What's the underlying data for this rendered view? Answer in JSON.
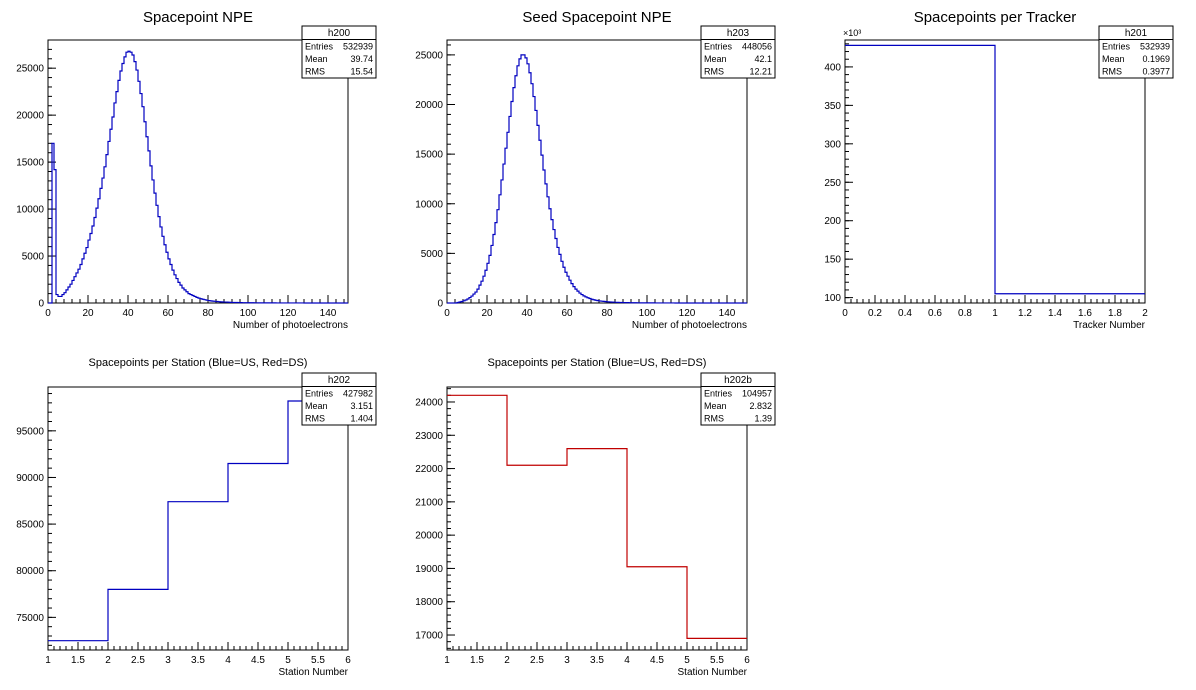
{
  "chart_data": [
    {
      "type": "histogram",
      "title": "Spacepoint NPE",
      "xlabel": "Number of photoelectrons",
      "ylabel": "",
      "xlim": [
        0,
        150
      ],
      "ylim": [
        0,
        28000
      ],
      "xticks": [
        0,
        20,
        40,
        60,
        80,
        100,
        120,
        140
      ],
      "yticks": [
        0,
        5000,
        10000,
        15000,
        20000,
        25000
      ],
      "line_color": "#0000c0",
      "stats": {
        "name": "h200",
        "entries_label": "Entries",
        "entries": "532939",
        "mean_label": "Mean",
        "mean": "39.74",
        "rms_label": "RMS",
        "rms": "15.54"
      },
      "bin_width": 1,
      "bin_values": [
        0,
        0,
        17000,
        14200,
        900,
        700,
        700,
        900,
        1100,
        1400,
        1700,
        2000,
        2400,
        2800,
        3200,
        3600,
        4100,
        4700,
        5300,
        5900,
        6700,
        7400,
        8200,
        9100,
        10100,
        11100,
        12200,
        13300,
        14500,
        15800,
        17200,
        18500,
        19800,
        21300,
        22500,
        23700,
        24700,
        25500,
        26200,
        26700,
        26800,
        26700,
        26400,
        25700,
        24800,
        23600,
        22300,
        20900,
        19300,
        17700,
        16200,
        14600,
        13100,
        11700,
        10400,
        9200,
        8100,
        7100,
        6200,
        5400,
        4700,
        4100,
        3500,
        3000,
        2600,
        2200,
        1900,
        1600,
        1400,
        1200,
        1000,
        900,
        800,
        700,
        600,
        520,
        460,
        400,
        350,
        300,
        260,
        230,
        200,
        180,
        160,
        140,
        120,
        110,
        100,
        90,
        80,
        70,
        60,
        55,
        50,
        45,
        40,
        35,
        32,
        30,
        28,
        26,
        24,
        22,
        20,
        18,
        17,
        16,
        15,
        14,
        13,
        12,
        11,
        10,
        9,
        9,
        8,
        8,
        7,
        7,
        6,
        6,
        5,
        5,
        5,
        4,
        4,
        4,
        3,
        3,
        3,
        3,
        2,
        2,
        2,
        2,
        2,
        2,
        1,
        1,
        1,
        1,
        1,
        1,
        1,
        1,
        1,
        1,
        1,
        0
      ]
    },
    {
      "type": "histogram",
      "title": "Seed Spacepoint NPE",
      "xlabel": "Number of photoelectrons",
      "ylabel": "",
      "xlim": [
        0,
        150
      ],
      "ylim": [
        0,
        26500
      ],
      "xticks": [
        0,
        20,
        40,
        60,
        80,
        100,
        120,
        140
      ],
      "yticks": [
        0,
        5000,
        10000,
        15000,
        20000,
        25000
      ],
      "line_color": "#0000c0",
      "stats": {
        "name": "h203",
        "entries_label": "Entries",
        "entries": "448056",
        "mean_label": "Mean",
        "mean": "42.1",
        "rms_label": "RMS",
        "rms": "12.21"
      },
      "bin_width": 1,
      "bin_values": [
        0,
        0,
        0,
        0,
        0,
        50,
        100,
        150,
        220,
        300,
        400,
        550,
        700,
        900,
        1100,
        1400,
        1800,
        2200,
        2700,
        3300,
        4000,
        4800,
        5800,
        6900,
        8100,
        9400,
        10900,
        12400,
        14000,
        15600,
        17200,
        18800,
        20300,
        21700,
        22900,
        23900,
        24600,
        25000,
        25000,
        24700,
        24100,
        23200,
        22100,
        20800,
        19400,
        17900,
        16400,
        14900,
        13400,
        12000,
        10700,
        9500,
        8400,
        7400,
        6500,
        5600,
        4900,
        4200,
        3600,
        3100,
        2700,
        2300,
        1950,
        1650,
        1400,
        1200,
        1000,
        850,
        720,
        620,
        530,
        450,
        380,
        330,
        280,
        240,
        210,
        180,
        160,
        140,
        120,
        105,
        90,
        80,
        70,
        60,
        55,
        50,
        45,
        40,
        35,
        30,
        28,
        25,
        22,
        20,
        18,
        16,
        15,
        13,
        12,
        11,
        10,
        9,
        8,
        8,
        7,
        6,
        6,
        5,
        5,
        4,
        4,
        4,
        3,
        3,
        3,
        3,
        2,
        2,
        2,
        2,
        2,
        1,
        1,
        1,
        1,
        1,
        1,
        1,
        1,
        1,
        1,
        0,
        0,
        0,
        0,
        0,
        0,
        0,
        0,
        0,
        0,
        0,
        0,
        0,
        0,
        0,
        0,
        0
      ]
    },
    {
      "type": "histogram",
      "title": "Spacepoints per Tracker",
      "xlabel": "Tracker Number",
      "ylabel": "",
      "xlim": [
        0,
        2
      ],
      "ylim": [
        93,
        435
      ],
      "xticks": [
        0,
        0.2,
        0.4,
        0.6,
        0.8,
        1,
        1.2,
        1.4,
        1.6,
        1.8,
        2
      ],
      "yticks": [
        100,
        150,
        200,
        250,
        300,
        350,
        400
      ],
      "exponent_label": "×10³",
      "line_color": "#0000c0",
      "stats": {
        "name": "h201",
        "entries_label": "Entries",
        "entries": "532939",
        "mean_label": "Mean",
        "mean": "0.1969",
        "rms_label": "RMS",
        "rms": "0.3977"
      },
      "bin_edges": [
        0,
        1,
        2
      ],
      "bin_values": [
        428,
        105
      ]
    },
    {
      "type": "histogram",
      "title": "Spacepoints per Station (Blue=US, Red=DS)",
      "xlabel": "Station Number",
      "ylabel": "",
      "xlim": [
        1,
        6
      ],
      "ylim": [
        71500,
        99700
      ],
      "xticks": [
        1,
        1.5,
        2,
        2.5,
        3,
        3.5,
        4,
        4.5,
        5,
        5.5,
        6
      ],
      "yticks": [
        75000,
        80000,
        85000,
        90000,
        95000
      ],
      "line_color": "#0000c0",
      "stats": {
        "name": "h202",
        "entries_label": "Entries",
        "entries": "427982",
        "mean_label": "Mean",
        "mean": "3.151",
        "rms_label": "RMS",
        "rms": "1.404"
      },
      "bin_edges": [
        1,
        2,
        3,
        4,
        5,
        6
      ],
      "bin_values": [
        72500,
        78000,
        87400,
        91500,
        98200
      ]
    },
    {
      "type": "histogram",
      "title": "Spacepoints per Station (Blue=US, Red=DS)",
      "xlabel": "Station Number",
      "ylabel": "",
      "xlim": [
        1,
        6
      ],
      "ylim": [
        16550,
        24450
      ],
      "xticks": [
        1,
        1.5,
        2,
        2.5,
        3,
        3.5,
        4,
        4.5,
        5,
        5.5,
        6
      ],
      "yticks": [
        17000,
        18000,
        19000,
        20000,
        21000,
        22000,
        23000,
        24000
      ],
      "line_color": "#c00000",
      "stats": {
        "name": "h202b",
        "entries_label": "Entries",
        "entries": "104957",
        "mean_label": "Mean",
        "mean": "2.832",
        "rms_label": "RMS",
        "rms": "1.39"
      },
      "bin_edges": [
        1,
        2,
        3,
        4,
        5,
        6
      ],
      "bin_values": [
        24200,
        22100,
        22600,
        19050,
        16900
      ]
    }
  ]
}
